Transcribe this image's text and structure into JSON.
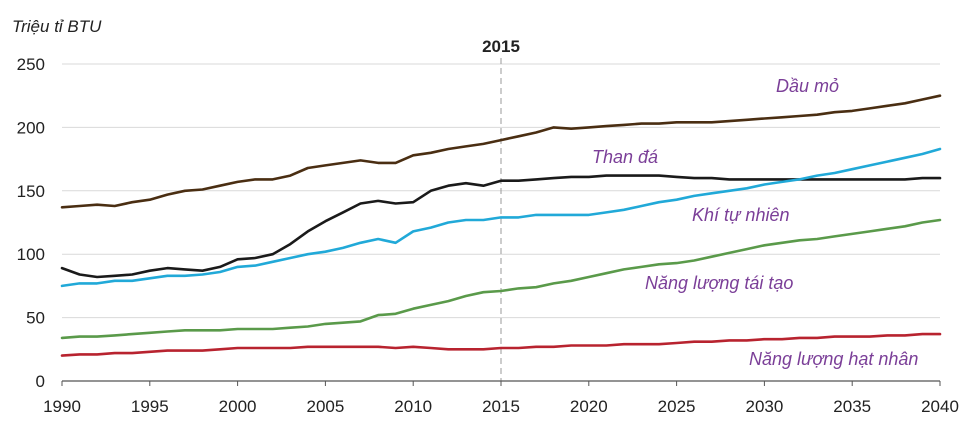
{
  "chart_data": {
    "type": "line",
    "ylabel": "Triệu tỉ BTU",
    "xlim": [
      1990,
      2040
    ],
    "ylim": [
      0,
      250
    ],
    "yticks": [
      0,
      50,
      100,
      150,
      200,
      250
    ],
    "xticks": [
      1990,
      1995,
      2000,
      2005,
      2010,
      2015,
      2020,
      2025,
      2030,
      2035,
      2040
    ],
    "grid": true,
    "marker": {
      "x": 2015,
      "label": "2015"
    },
    "series": [
      {
        "name": "Dầu mỏ",
        "color": "#4a2e12",
        "x": [
          1990,
          1991,
          1992,
          1993,
          1994,
          1995,
          1996,
          1997,
          1998,
          1999,
          2000,
          2001,
          2002,
          2003,
          2004,
          2005,
          2006,
          2007,
          2008,
          2009,
          2010,
          2011,
          2012,
          2013,
          2014,
          2015,
          2016,
          2017,
          2018,
          2019,
          2020,
          2021,
          2022,
          2023,
          2024,
          2025,
          2026,
          2027,
          2028,
          2029,
          2030,
          2031,
          2032,
          2033,
          2034,
          2035,
          2036,
          2037,
          2038,
          2039,
          2040
        ],
        "y": [
          137,
          138,
          139,
          138,
          141,
          143,
          147,
          150,
          151,
          154,
          157,
          159,
          159,
          162,
          168,
          170,
          172,
          174,
          172,
          172,
          178,
          180,
          183,
          185,
          187,
          190,
          193,
          196,
          200,
          199,
          200,
          201,
          202,
          203,
          203,
          204,
          204,
          204,
          205,
          206,
          207,
          208,
          209,
          210,
          212,
          213,
          215,
          217,
          219,
          222,
          225
        ]
      },
      {
        "name": "Than đá",
        "color": "#1a1a1a",
        "x": [
          1990,
          1991,
          1992,
          1993,
          1994,
          1995,
          1996,
          1997,
          1998,
          1999,
          2000,
          2001,
          2002,
          2003,
          2004,
          2005,
          2006,
          2007,
          2008,
          2009,
          2010,
          2011,
          2012,
          2013,
          2014,
          2015,
          2016,
          2017,
          2018,
          2019,
          2020,
          2021,
          2022,
          2023,
          2024,
          2025,
          2026,
          2027,
          2028,
          2029,
          2030,
          2031,
          2032,
          2033,
          2034,
          2035,
          2036,
          2037,
          2038,
          2039,
          2040
        ],
        "y": [
          89,
          84,
          82,
          83,
          84,
          87,
          89,
          88,
          87,
          90,
          96,
          97,
          100,
          108,
          118,
          126,
          133,
          140,
          142,
          140,
          141,
          150,
          154,
          156,
          154,
          158,
          158,
          159,
          160,
          161,
          161,
          162,
          162,
          162,
          162,
          161,
          160,
          160,
          159,
          159,
          159,
          159,
          159,
          159,
          159,
          159,
          159,
          159,
          159,
          160,
          160
        ]
      },
      {
        "name": "Khí tự nhiên",
        "color": "#21a9d8",
        "x": [
          1990,
          1991,
          1992,
          1993,
          1994,
          1995,
          1996,
          1997,
          1998,
          1999,
          2000,
          2001,
          2002,
          2003,
          2004,
          2005,
          2006,
          2007,
          2008,
          2009,
          2010,
          2011,
          2012,
          2013,
          2014,
          2015,
          2016,
          2017,
          2018,
          2019,
          2020,
          2021,
          2022,
          2023,
          2024,
          2025,
          2026,
          2027,
          2028,
          2029,
          2030,
          2031,
          2032,
          2033,
          2034,
          2035,
          2036,
          2037,
          2038,
          2039,
          2040
        ],
        "y": [
          75,
          77,
          77,
          79,
          79,
          81,
          83,
          83,
          84,
          86,
          90,
          91,
          94,
          97,
          100,
          102,
          105,
          109,
          112,
          109,
          118,
          121,
          125,
          127,
          127,
          129,
          129,
          131,
          131,
          131,
          131,
          133,
          135,
          138,
          141,
          143,
          146,
          148,
          150,
          152,
          155,
          157,
          159,
          162,
          164,
          167,
          170,
          173,
          176,
          179,
          183
        ]
      },
      {
        "name": "Năng lượng tái tạo",
        "color": "#5a9a4a",
        "x": [
          1990,
          1991,
          1992,
          1993,
          1994,
          1995,
          1996,
          1997,
          1998,
          1999,
          2000,
          2001,
          2002,
          2003,
          2004,
          2005,
          2006,
          2007,
          2008,
          2009,
          2010,
          2011,
          2012,
          2013,
          2014,
          2015,
          2016,
          2017,
          2018,
          2019,
          2020,
          2021,
          2022,
          2023,
          2024,
          2025,
          2026,
          2027,
          2028,
          2029,
          2030,
          2031,
          2032,
          2033,
          2034,
          2035,
          2036,
          2037,
          2038,
          2039,
          2040
        ],
        "y": [
          34,
          35,
          35,
          36,
          37,
          38,
          39,
          40,
          40,
          40,
          41,
          41,
          41,
          42,
          43,
          45,
          46,
          47,
          52,
          53,
          57,
          60,
          63,
          67,
          70,
          71,
          73,
          74,
          77,
          79,
          82,
          85,
          88,
          90,
          92,
          93,
          95,
          98,
          101,
          104,
          107,
          109,
          111,
          112,
          114,
          116,
          118,
          120,
          122,
          125,
          127
        ]
      },
      {
        "name": "Năng lượng hạt nhân",
        "color": "#b8232f",
        "x": [
          1990,
          1991,
          1992,
          1993,
          1994,
          1995,
          1996,
          1997,
          1998,
          1999,
          2000,
          2001,
          2002,
          2003,
          2004,
          2005,
          2006,
          2007,
          2008,
          2009,
          2010,
          2011,
          2012,
          2013,
          2014,
          2015,
          2016,
          2017,
          2018,
          2019,
          2020,
          2021,
          2022,
          2023,
          2024,
          2025,
          2026,
          2027,
          2028,
          2029,
          2030,
          2031,
          2032,
          2033,
          2034,
          2035,
          2036,
          2037,
          2038,
          2039,
          2040
        ],
        "y": [
          20,
          21,
          21,
          22,
          22,
          23,
          24,
          24,
          24,
          25,
          26,
          26,
          26,
          26,
          27,
          27,
          27,
          27,
          27,
          26,
          27,
          26,
          25,
          25,
          25,
          26,
          26,
          27,
          27,
          28,
          28,
          28,
          29,
          29,
          29,
          30,
          31,
          31,
          32,
          32,
          33,
          33,
          34,
          34,
          35,
          35,
          35,
          36,
          36,
          37,
          37
        ]
      }
    ]
  }
}
